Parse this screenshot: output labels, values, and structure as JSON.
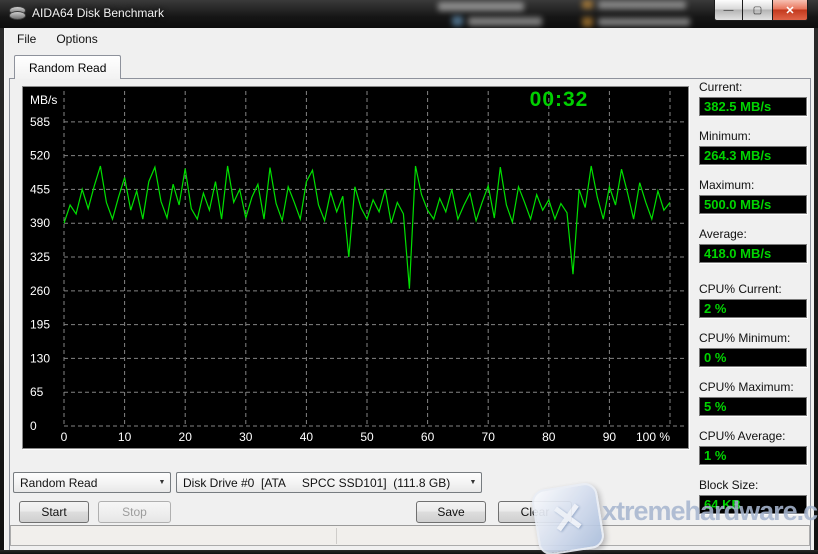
{
  "window": {
    "title": "AIDA64 Disk Benchmark"
  },
  "icons": {
    "app_icon": "disk",
    "minimize_glyph": "—",
    "maximize_glyph": "▢",
    "close_glyph": "✕",
    "dropdown_glyph": "▼"
  },
  "menu": {
    "items": [
      "File",
      "Options"
    ]
  },
  "tabs": [
    {
      "label": "Random Read"
    }
  ],
  "chart_data": {
    "type": "line",
    "title": "",
    "xlabel": "",
    "ylabel": "MB/s",
    "timer": "00:32",
    "xlim": [
      0,
      100
    ],
    "ylim": [
      0,
      652
    ],
    "xticks": [
      0,
      10,
      20,
      30,
      40,
      50,
      60,
      70,
      80,
      90,
      100
    ],
    "xtick_labels": [
      "0",
      "10",
      "20",
      "30",
      "40",
      "50",
      "60",
      "70",
      "80",
      "90",
      "100 %"
    ],
    "yticks": [
      0,
      65,
      130,
      195,
      260,
      325,
      390,
      455,
      520,
      585
    ],
    "grid": true,
    "legend": "none",
    "background": "#000000",
    "grid_color": "#848484",
    "line_color": "#00e000",
    "x_step": 1,
    "values": [
      390,
      425,
      408,
      455,
      418,
      462,
      500,
      430,
      398,
      440,
      478,
      415,
      452,
      398,
      470,
      498,
      432,
      400,
      465,
      425,
      495,
      418,
      398,
      448,
      415,
      470,
      398,
      500,
      430,
      455,
      400,
      440,
      465,
      398,
      497,
      428,
      395,
      460,
      430,
      398,
      470,
      492,
      425,
      395,
      450,
      412,
      442,
      325,
      460,
      420,
      398,
      435,
      412,
      455,
      390,
      430,
      408,
      264,
      500,
      445,
      415,
      398,
      438,
      412,
      455,
      398,
      425,
      448,
      395,
      430,
      462,
      400,
      498,
      425,
      392,
      460,
      430,
      398,
      445,
      415,
      435,
      398,
      428,
      410,
      292,
      455,
      420,
      500,
      440,
      398,
      460,
      425,
      494,
      448,
      398,
      468,
      430,
      398,
      452,
      415,
      430
    ]
  },
  "stats": [
    {
      "label": "Current:",
      "value": "382.5 MB/s"
    },
    {
      "label": "Minimum:",
      "value": "264.3 MB/s"
    },
    {
      "label": "Maximum:",
      "value": "500.0 MB/s"
    },
    {
      "label": "Average:",
      "value": "418.0 MB/s"
    },
    {
      "label": "CPU% Current:",
      "value": "2 %"
    },
    {
      "label": "CPU% Minimum:",
      "value": "0 %"
    },
    {
      "label": "CPU% Maximum:",
      "value": "5 %"
    },
    {
      "label": "CPU% Average:",
      "value": "1 %"
    },
    {
      "label": "Block Size:",
      "value": "64 KB"
    }
  ],
  "controls": {
    "benchmark_select": "Random Read",
    "drive_select": "Disk Drive #0  [ATA     SPCC SSD101]  (111.8 GB)",
    "start_label": "Start",
    "stop_label": "Stop",
    "save_label": "Save",
    "clear_label": "Clear"
  },
  "watermark": {
    "text": "xtremehardware.com"
  }
}
